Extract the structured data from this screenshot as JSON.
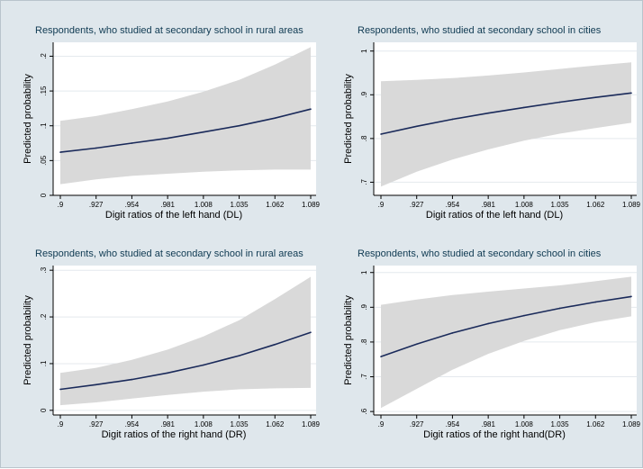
{
  "colors": {
    "background": "#dfe7ec",
    "plot_area": "#ffffff",
    "band": "#d9d9d9",
    "line": "#1a2a5a",
    "title": "#0f3a52"
  },
  "chart_data": [
    {
      "type": "line",
      "title": "Respondents, who studied at secondary school in rural areas",
      "xlabel": "Digit ratios of the left hand (DL)",
      "ylabel": "Predicted probability",
      "x_ticks": [
        ".9",
        ".927",
        ".954",
        ".981",
        "1.008",
        "1.035",
        "1.062",
        "1.089"
      ],
      "x_tick_values": [
        0.9,
        0.927,
        0.954,
        0.981,
        1.008,
        1.035,
        1.062,
        1.089
      ],
      "y_ticks": [
        "0",
        ".05",
        ".1",
        ".15",
        ".2"
      ],
      "y_tick_values": [
        0,
        0.05,
        0.1,
        0.15,
        0.2
      ],
      "xlim": [
        0.9,
        1.089
      ],
      "ylim": [
        0,
        0.22
      ],
      "grid": true,
      "series": [
        {
          "name": "Predicted probability",
          "x": [
            0.9,
            0.927,
            0.954,
            0.981,
            1.008,
            1.035,
            1.062,
            1.089
          ],
          "values": [
            0.062,
            0.068,
            0.075,
            0.082,
            0.091,
            0.1,
            0.111,
            0.124
          ],
          "lower": [
            0.016,
            0.023,
            0.028,
            0.031,
            0.034,
            0.036,
            0.037,
            0.037
          ],
          "upper": [
            0.107,
            0.114,
            0.124,
            0.135,
            0.149,
            0.166,
            0.188,
            0.213
          ]
        }
      ]
    },
    {
      "type": "line",
      "title": "Respondents, who studied at secondary school in cities",
      "xlabel": "Digit ratios of the left hand (DL)",
      "ylabel": "Predicted probability",
      "x_ticks": [
        ".9",
        ".927",
        ".954",
        ".981",
        "1.008",
        "1.035",
        "1.062",
        "1.089"
      ],
      "x_tick_values": [
        0.9,
        0.927,
        0.954,
        0.981,
        1.008,
        1.035,
        1.062,
        1.089
      ],
      "y_ticks": [
        ".7",
        ".8",
        ".9",
        "1"
      ],
      "y_tick_values": [
        0.7,
        0.8,
        0.9,
        1.0
      ],
      "xlim": [
        0.9,
        1.089
      ],
      "ylim": [
        0.67,
        1.02
      ],
      "grid": true,
      "series": [
        {
          "name": "Predicted probability",
          "x": [
            0.9,
            0.927,
            0.954,
            0.981,
            1.008,
            1.035,
            1.062,
            1.089
          ],
          "values": [
            0.81,
            0.828,
            0.844,
            0.858,
            0.871,
            0.883,
            0.894,
            0.904
          ],
          "lower": [
            0.69,
            0.724,
            0.752,
            0.775,
            0.795,
            0.811,
            0.824,
            0.836
          ],
          "upper": [
            0.931,
            0.934,
            0.938,
            0.944,
            0.951,
            0.959,
            0.967,
            0.974
          ]
        }
      ]
    },
    {
      "type": "line",
      "title": "Respondents, who studied at secondary school in rural areas",
      "xlabel": "Digit ratios of the right hand (DR)",
      "ylabel": "Predicted probability",
      "x_ticks": [
        ".9",
        ".927",
        ".954",
        ".981",
        "1.008",
        "1.035",
        "1.062",
        "1.089"
      ],
      "x_tick_values": [
        0.9,
        0.927,
        0.954,
        0.981,
        1.008,
        1.035,
        1.062,
        1.089
      ],
      "y_ticks": [
        "0",
        ".1",
        ".2",
        ".3"
      ],
      "y_tick_values": [
        0,
        0.1,
        0.2,
        0.3
      ],
      "xlim": [
        0.9,
        1.089
      ],
      "ylim": [
        -0.01,
        0.31
      ],
      "grid": true,
      "series": [
        {
          "name": "Predicted probability",
          "x": [
            0.9,
            0.927,
            0.954,
            0.981,
            1.008,
            1.035,
            1.062,
            1.089
          ],
          "values": [
            0.045,
            0.055,
            0.066,
            0.08,
            0.097,
            0.117,
            0.141,
            0.167
          ],
          "lower": [
            0.011,
            0.017,
            0.025,
            0.033,
            0.04,
            0.045,
            0.047,
            0.048
          ],
          "upper": [
            0.08,
            0.091,
            0.108,
            0.13,
            0.158,
            0.193,
            0.238,
            0.286
          ]
        }
      ]
    },
    {
      "type": "line",
      "title": "Respondents, who studied at secondary school in cities",
      "xlabel": "Digit ratios of the right hand(DR)",
      "ylabel": "Predicted probability",
      "x_ticks": [
        ".9",
        ".927",
        ".954",
        ".981",
        "1.008",
        "1.035",
        "1.062",
        "1.089"
      ],
      "x_tick_values": [
        0.9,
        0.927,
        0.954,
        0.981,
        1.008,
        1.035,
        1.062,
        1.089
      ],
      "y_ticks": [
        ".6",
        ".7",
        ".8",
        ".9",
        "1"
      ],
      "y_tick_values": [
        0.6,
        0.7,
        0.8,
        0.9,
        1.0
      ],
      "xlim": [
        0.9,
        1.089
      ],
      "ylim": [
        0.59,
        1.02
      ],
      "grid": true,
      "series": [
        {
          "name": "Predicted probability",
          "x": [
            0.9,
            0.927,
            0.954,
            0.981,
            1.008,
            1.035,
            1.062,
            1.089
          ],
          "values": [
            0.758,
            0.794,
            0.826,
            0.853,
            0.876,
            0.897,
            0.915,
            0.931
          ],
          "lower": [
            0.61,
            0.665,
            0.72,
            0.766,
            0.803,
            0.834,
            0.857,
            0.874
          ],
          "upper": [
            0.907,
            0.922,
            0.935,
            0.945,
            0.954,
            0.963,
            0.975,
            0.988
          ]
        }
      ]
    }
  ]
}
